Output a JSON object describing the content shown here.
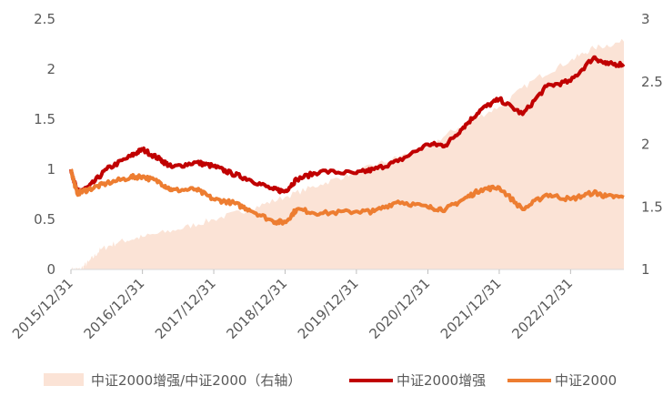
{
  "chart_data": {
    "type": "line",
    "title": "",
    "xlabel": "",
    "ylabel": "",
    "x_tick_labels": [
      "2015/12/31",
      "2016/12/31",
      "2017/12/31",
      "2018/12/31",
      "2019/12/31",
      "2020/12/31",
      "2021/12/31",
      "2022/12/31"
    ],
    "y_left": {
      "lim": [
        0,
        2.5
      ],
      "ticks": [
        "0",
        "0.5",
        "1",
        "1.5",
        "2",
        "2.5"
      ]
    },
    "y_right": {
      "lim": [
        1,
        3
      ],
      "ticks": [
        "1",
        "1.5",
        "2",
        "2.5",
        "3"
      ]
    },
    "x_range": [
      "2015/12/31",
      "2023/09/30"
    ],
    "grid": false,
    "legend_position": "bottom",
    "series": [
      {
        "name": "中证2000增强/中证2000（右轴）",
        "type": "area",
        "axis": "right",
        "color": "#FBE3D6",
        "points": [
          [
            "2015/12/31",
            1.0
          ],
          [
            "2016/02/15",
            1.0
          ],
          [
            "2016/03/31",
            1.06
          ],
          [
            "2016/05/31",
            1.16
          ],
          [
            "2016/08/31",
            1.22
          ],
          [
            "2016/12/31",
            1.26
          ],
          [
            "2017/06/30",
            1.32
          ],
          [
            "2017/12/31",
            1.4
          ],
          [
            "2018/06/30",
            1.48
          ],
          [
            "2018/12/31",
            1.58
          ],
          [
            "2019/06/30",
            1.68
          ],
          [
            "2019/12/31",
            1.78
          ],
          [
            "2020/06/30",
            1.88
          ],
          [
            "2020/12/31",
            1.98
          ],
          [
            "2021/06/30",
            2.16
          ],
          [
            "2021/12/31",
            2.3
          ],
          [
            "2022/06/30",
            2.52
          ],
          [
            "2022/12/31",
            2.67
          ],
          [
            "2023/04/30",
            2.77
          ],
          [
            "2023/09/30",
            2.82
          ]
        ]
      },
      {
        "name": "中证2000增强",
        "type": "line",
        "axis": "left",
        "color": "#C00000",
        "points": [
          [
            "2015/12/31",
            1.0
          ],
          [
            "2016/01/31",
            0.78
          ],
          [
            "2016/03/31",
            0.82
          ],
          [
            "2016/06/30",
            1.0
          ],
          [
            "2016/10/31",
            1.13
          ],
          [
            "2016/12/31",
            1.2
          ],
          [
            "2017/03/31",
            1.1
          ],
          [
            "2017/05/31",
            1.02
          ],
          [
            "2017/09/30",
            1.07
          ],
          [
            "2017/12/31",
            1.03
          ],
          [
            "2018/03/31",
            0.96
          ],
          [
            "2018/06/30",
            0.9
          ],
          [
            "2018/10/31",
            0.8
          ],
          [
            "2018/12/31",
            0.78
          ],
          [
            "2019/02/28",
            0.9
          ],
          [
            "2019/06/30",
            0.98
          ],
          [
            "2019/12/31",
            0.96
          ],
          [
            "2020/03/31",
            1.0
          ],
          [
            "2020/07/31",
            1.08
          ],
          [
            "2020/12/31",
            1.25
          ],
          [
            "2021/03/31",
            1.24
          ],
          [
            "2021/06/30",
            1.42
          ],
          [
            "2021/09/30",
            1.6
          ],
          [
            "2021/12/31",
            1.7
          ],
          [
            "2022/04/30",
            1.55
          ],
          [
            "2022/08/31",
            1.83
          ],
          [
            "2022/12/31",
            1.88
          ],
          [
            "2023/04/30",
            2.12
          ],
          [
            "2023/06/30",
            2.05
          ],
          [
            "2023/09/30",
            2.05
          ]
        ]
      },
      {
        "name": "中证2000",
        "type": "line",
        "axis": "left",
        "color": "#ED7D31",
        "points": [
          [
            "2015/12/31",
            1.0
          ],
          [
            "2016/01/31",
            0.76
          ],
          [
            "2016/03/31",
            0.8
          ],
          [
            "2016/06/30",
            0.86
          ],
          [
            "2016/10/31",
            0.92
          ],
          [
            "2016/12/31",
            0.93
          ],
          [
            "2017/03/31",
            0.87
          ],
          [
            "2017/05/31",
            0.79
          ],
          [
            "2017/09/30",
            0.8
          ],
          [
            "2017/12/31",
            0.7
          ],
          [
            "2018/03/31",
            0.67
          ],
          [
            "2018/06/30",
            0.6
          ],
          [
            "2018/10/31",
            0.48
          ],
          [
            "2018/12/31",
            0.47
          ],
          [
            "2019/02/28",
            0.6
          ],
          [
            "2019/06/30",
            0.56
          ],
          [
            "2019/12/31",
            0.58
          ],
          [
            "2020/03/31",
            0.58
          ],
          [
            "2020/07/31",
            0.68
          ],
          [
            "2020/12/31",
            0.62
          ],
          [
            "2021/03/31",
            0.6
          ],
          [
            "2021/06/30",
            0.7
          ],
          [
            "2021/09/30",
            0.8
          ],
          [
            "2021/12/31",
            0.82
          ],
          [
            "2022/04/30",
            0.6
          ],
          [
            "2022/08/31",
            0.75
          ],
          [
            "2022/12/31",
            0.7
          ],
          [
            "2023/04/30",
            0.77
          ],
          [
            "2023/06/30",
            0.73
          ],
          [
            "2023/09/30",
            0.72
          ]
        ]
      }
    ]
  }
}
